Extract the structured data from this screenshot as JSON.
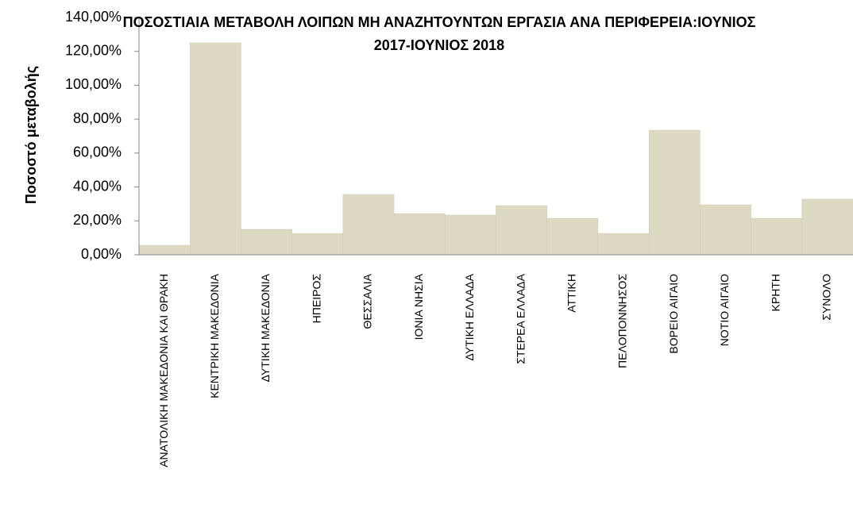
{
  "chart_data": {
    "type": "bar",
    "title": "ΠΟΣΟΣΤΙΑΙΑ ΜΕΤΑΒΟΛΗ ΛΟΙΠΩΝ ΜΗ ΑΝΑΖΗΤΟΥΝΤΩΝ ΕΡΓΑΣΙΑ ΑΝΑ ΠΕΡΙΦΕΡΕΙΑ:ΙΟΥΝΙΟΣ 2017-ΙΟΥΝΙΟΣ 2018",
    "ylabel": "Ποσοστό μεταβολής",
    "categories": [
      "ΑΝΑΤΟΛΙΚΗ ΜΑΚΕΔΟΝΙΑ ΚΑΙ ΘΡΑΚΗ",
      "ΚΕΝΤΡΙΚΗ ΜΑΚΕΔΟΝΙΑ",
      "ΔΥΤΙΚΗ ΜΑΚΕΔΟΝΙΑ",
      "ΗΠΕΙΡΟΣ",
      "ΘΕΣΣΑΛΙΑ",
      "ΙΟΝΙΑ ΝΗΣΙΑ",
      "ΔΥΤΙΚΗ ΕΛΛΑΔΑ",
      "ΣΤΕΡΕΑ ΕΛΛΑΔΑ",
      "ΑΤΤΙΚΗ",
      "ΠΕΛΟΠΟΝΝΗΣΟΣ",
      "ΒΟΡΕΙΟ ΑΙΓΑΙΟ",
      "ΝΟΤΙΟ ΑΙΓΑΙΟ",
      "ΚΡΗΤΗ",
      "ΣΥΝΟΛΟ"
    ],
    "values": [
      5.6,
      125,
      15,
      12.6,
      35.6,
      24.3,
      23.4,
      29,
      21.5,
      12.6,
      73.5,
      29.5,
      21.5,
      32.8
    ],
    "color": "#ddd9c3",
    "ylim": [
      0,
      140
    ],
    "yticks": [
      {
        "value": 0,
        "label": "0,00%"
      },
      {
        "value": 20,
        "label": "20,00%"
      },
      {
        "value": 40,
        "label": "40,00%"
      },
      {
        "value": 60,
        "label": "60,00%"
      },
      {
        "value": 80,
        "label": "80,00%"
      },
      {
        "value": 100,
        "label": "100,00%"
      },
      {
        "value": 120,
        "label": "120,00%"
      },
      {
        "value": 140,
        "label": "140,00%"
      }
    ],
    "grid": false
  }
}
